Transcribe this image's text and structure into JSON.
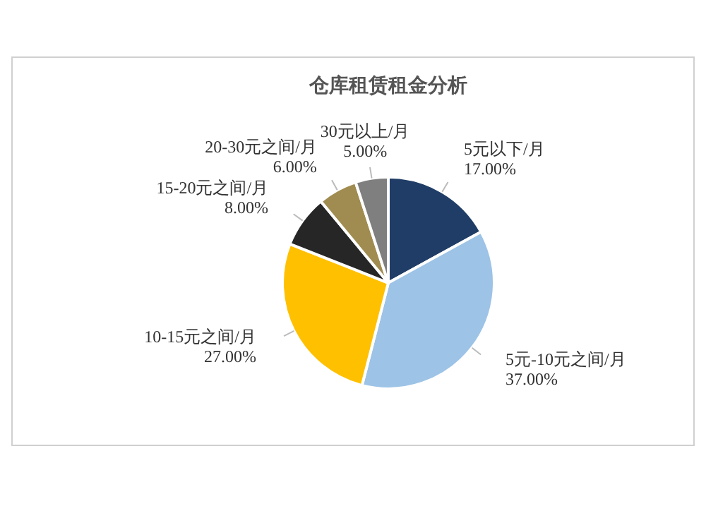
{
  "chart_data": {
    "type": "pie",
    "title": "仓库租赁租金分析",
    "categories": [
      "5元以下/月",
      "5元-10元之间/月",
      "10-15元之间/月",
      "15-20元之间/月",
      "20-30元之间/月",
      "30元以上/月"
    ],
    "values": [
      17,
      37,
      27,
      8,
      6,
      5
    ],
    "colors": [
      "#1f3d66",
      "#9dc3e6",
      "#ffc000",
      "#262626",
      "#a08c50",
      "#7f7f7f"
    ],
    "value_labels": [
      "17.00%",
      "37.00%",
      "27.00%",
      "8.00%",
      "6.00%",
      "5.00%"
    ],
    "legend": false
  }
}
